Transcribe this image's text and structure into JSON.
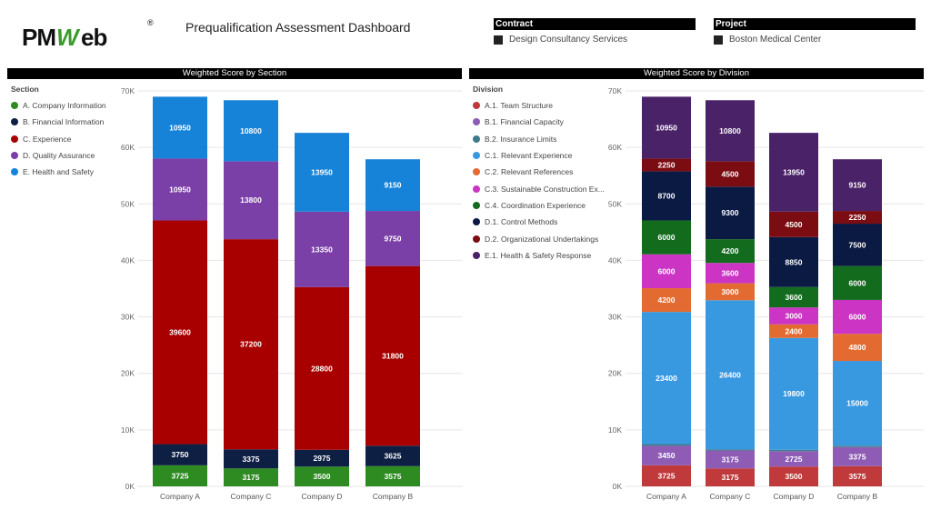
{
  "header": {
    "logo_text": "PMWeb",
    "logo_mark": "®",
    "title": "Prequalification Assessment Dashboard"
  },
  "slicers": [
    {
      "label": "Contract",
      "value": "Design Consultancy Services"
    },
    {
      "label": "Project",
      "value": "Boston Medical Center"
    }
  ],
  "colors": {
    "brand_green": "#3a9a2a",
    "brand_black": "#111111"
  },
  "chart_data": [
    {
      "type": "bar",
      "stacked": true,
      "title": "Weighted Score by Section",
      "legend_title": "Section",
      "categories": [
        "Company A",
        "Company C",
        "Company D",
        "Company B"
      ],
      "ylim": [
        0,
        70000
      ],
      "yticks": [
        0,
        10000,
        20000,
        30000,
        40000,
        50000,
        60000,
        70000
      ],
      "ytick_labels": [
        "0K",
        "10K",
        "20K",
        "30K",
        "40K",
        "50K",
        "60K",
        "70K"
      ],
      "series": [
        {
          "name": "A. Company Information",
          "color": "#2e8b22",
          "values": [
            3725,
            3175,
            3500,
            3575
          ]
        },
        {
          "name": "B. Financial Information",
          "color": "#0e1f44",
          "values": [
            3750,
            3375,
            2975,
            3625
          ]
        },
        {
          "name": "C. Experience",
          "color": "#a80000",
          "values": [
            39600,
            37200,
            28800,
            31800
          ]
        },
        {
          "name": "D. Quality Assurance",
          "color": "#7b3fa8",
          "values": [
            10950,
            13800,
            13350,
            9750
          ]
        },
        {
          "name": "E. Health and Safety",
          "color": "#1683d8",
          "values": [
            10950,
            10800,
            13950,
            9150
          ]
        }
      ]
    },
    {
      "type": "bar",
      "stacked": true,
      "title": "Weighted Score by Division",
      "legend_title": "Division",
      "categories": [
        "Company A",
        "Company C",
        "Company D",
        "Company B"
      ],
      "ylim": [
        0,
        70000
      ],
      "yticks": [
        0,
        10000,
        20000,
        30000,
        40000,
        50000,
        60000,
        70000
      ],
      "ytick_labels": [
        "0K",
        "10K",
        "20K",
        "30K",
        "40K",
        "50K",
        "60K",
        "70K"
      ],
      "series": [
        {
          "name": "A.1. Team Structure",
          "color": "#c0393b",
          "values": [
            3725,
            3175,
            3500,
            3575
          ]
        },
        {
          "name": "B.1. Financial Capacity",
          "color": "#8e5cb5",
          "values": [
            3450,
            3175,
            2725,
            3375
          ]
        },
        {
          "name": "B.2. Insurance Limits",
          "color": "#3d7a8c",
          "values": [
            300,
            200,
            250,
            250
          ]
        },
        {
          "name": "C.1. Relevant Experience",
          "color": "#3898e0",
          "values": [
            23400,
            26400,
            19800,
            15000
          ]
        },
        {
          "name": "C.2. Relevant References",
          "color": "#e36b32",
          "values": [
            4200,
            3000,
            2400,
            4800
          ]
        },
        {
          "name": "C.3. Sustainable Construction Ex...",
          "color": "#cc35c3",
          "values": [
            6000,
            3600,
            3000,
            6000
          ]
        },
        {
          "name": "C.4. Coordination Experience",
          "color": "#136b1e",
          "values": [
            6000,
            4200,
            3600,
            6000
          ]
        },
        {
          "name": "D.1. Control Methods",
          "color": "#0a1a42",
          "values": [
            8700,
            9300,
            8850,
            7500
          ]
        },
        {
          "name": "D.2. Organizational Undertakings",
          "color": "#7a0c12",
          "values": [
            2250,
            4500,
            4500,
            2250
          ]
        },
        {
          "name": "E.1. Health & Safety Response",
          "color": "#4a2268",
          "values": [
            10950,
            10800,
            13950,
            9150
          ]
        }
      ]
    }
  ]
}
